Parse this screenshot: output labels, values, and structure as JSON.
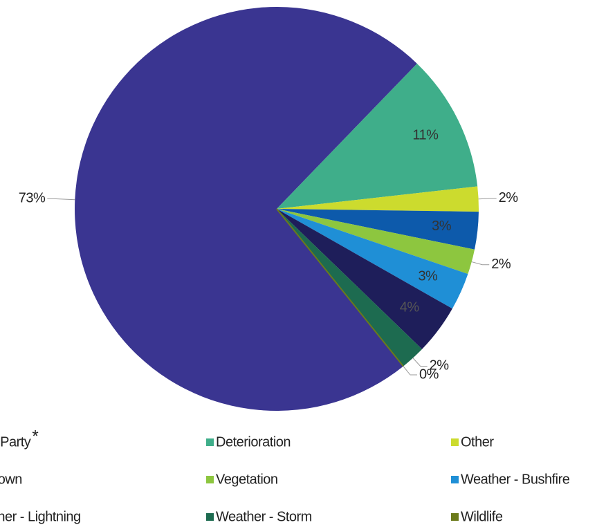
{
  "chart_data": {
    "type": "pie",
    "categories": [
      "Third Party",
      "Deterioration",
      "Other",
      "Unknown",
      "Vegetation",
      "Weather - Bushfire",
      "Weather - Lightning",
      "Weather - Storm",
      "Wildlife"
    ],
    "values": [
      73,
      11,
      2,
      3,
      2,
      3,
      4,
      2,
      0
    ],
    "value_labels": [
      "73%",
      "11%",
      "2%",
      "3%",
      "2%",
      "3%",
      "4%",
      "2%",
      "0%"
    ],
    "colors": [
      "#3a3591",
      "#3fae8a",
      "#ccdb2e",
      "#0d5aab",
      "#8dc63f",
      "#1f8fd6",
      "#1e1e5a",
      "#1d6b50",
      "#6b7a1a"
    ],
    "note_marker": "*",
    "legend": "bottom"
  }
}
